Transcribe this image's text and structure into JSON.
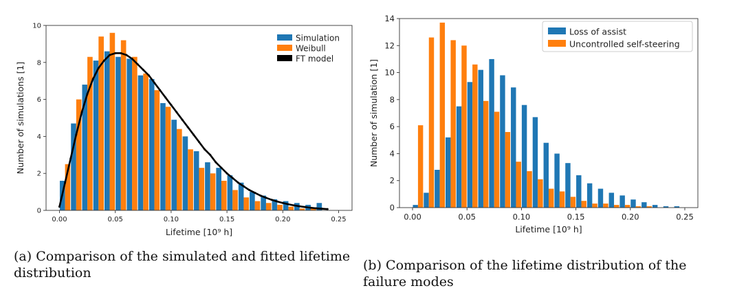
{
  "captions": {
    "a": "(a) Comparison of the simulated and fitted lifetime distribution",
    "b": "(b) Comparison of the lifetime distribution of the failure modes"
  },
  "chart_data": [
    {
      "type": "bar",
      "xlabel": "Lifetime [10⁹ h]",
      "ylabel": "Number of simulations [1]",
      "xlim": [
        -0.012,
        0.262
      ],
      "ylim": [
        0,
        10
      ],
      "xticks": [
        "0.00",
        "0.05",
        "0.10",
        "0.15",
        "0.20",
        "0.25"
      ],
      "xtick_values": [
        0,
        0.05,
        0.1,
        0.15,
        0.2,
        0.25
      ],
      "yticks": [
        "0",
        "2",
        "4",
        "6",
        "8",
        "10"
      ],
      "ytick_values": [
        0,
        2,
        4,
        6,
        8,
        10
      ],
      "grid": false,
      "legend_position": "top-right",
      "bin_width": 0.01,
      "x": [
        0.005,
        0.015,
        0.025,
        0.035,
        0.045,
        0.055,
        0.065,
        0.075,
        0.085,
        0.095,
        0.105,
        0.115,
        0.125,
        0.135,
        0.145,
        0.155,
        0.165,
        0.175,
        0.185,
        0.195,
        0.205,
        0.215,
        0.225,
        0.235,
        0.245
      ],
      "series": [
        {
          "name": "Simulation",
          "color": "#1f77b4",
          "values": [
            1.6,
            4.7,
            6.8,
            8.1,
            8.6,
            8.3,
            8.2,
            7.3,
            7.1,
            5.8,
            4.9,
            4.0,
            3.2,
            2.6,
            2.3,
            1.9,
            1.5,
            1.0,
            0.8,
            0.6,
            0.5,
            0.4,
            0.3,
            0.4,
            0.0
          ]
        },
        {
          "name": "Weibull",
          "color": "#ff7f0e",
          "values": [
            2.5,
            6.0,
            8.3,
            9.4,
            9.6,
            9.2,
            8.3,
            7.4,
            6.5,
            5.6,
            4.4,
            3.3,
            2.3,
            2.0,
            1.6,
            1.1,
            0.7,
            0.5,
            0.4,
            0.3,
            0.2,
            0.1,
            0.1,
            0.0,
            0.0
          ]
        },
        {
          "name": "FT model",
          "color": "#000000",
          "type": "line",
          "x": [
            0.0,
            0.005,
            0.01,
            0.015,
            0.02,
            0.025,
            0.03,
            0.035,
            0.04,
            0.045,
            0.05,
            0.055,
            0.06,
            0.065,
            0.07,
            0.075,
            0.08,
            0.085,
            0.09,
            0.095,
            0.1,
            0.105,
            0.11,
            0.115,
            0.12,
            0.125,
            0.13,
            0.135,
            0.14,
            0.145,
            0.15,
            0.155,
            0.16,
            0.165,
            0.17,
            0.175,
            0.18,
            0.185,
            0.19,
            0.195,
            0.2,
            0.205,
            0.21,
            0.215,
            0.22,
            0.225,
            0.23,
            0.235,
            0.24
          ],
          "values": [
            0.2,
            1.5,
            2.8,
            4.1,
            5.3,
            6.3,
            7.1,
            7.7,
            8.1,
            8.4,
            8.5,
            8.5,
            8.4,
            8.2,
            7.9,
            7.6,
            7.3,
            6.9,
            6.5,
            6.1,
            5.7,
            5.3,
            4.9,
            4.5,
            4.1,
            3.7,
            3.3,
            3.0,
            2.6,
            2.3,
            2.0,
            1.75,
            1.5,
            1.3,
            1.1,
            0.95,
            0.8,
            0.68,
            0.57,
            0.48,
            0.4,
            0.33,
            0.27,
            0.22,
            0.18,
            0.14,
            0.11,
            0.09,
            0.07
          ]
        }
      ]
    },
    {
      "type": "bar",
      "xlabel": "Lifetime [10⁹ h]",
      "ylabel": "Number of simulation [1]",
      "xlim": [
        -0.012,
        0.262
      ],
      "ylim": [
        0,
        14
      ],
      "xticks": [
        "0.00",
        "0.05",
        "0.10",
        "0.15",
        "0.20",
        "0.25"
      ],
      "xtick_values": [
        0,
        0.05,
        0.1,
        0.15,
        0.2,
        0.25
      ],
      "yticks": [
        "0",
        "2",
        "4",
        "6",
        "8",
        "10",
        "12",
        "14"
      ],
      "ytick_values": [
        0,
        2,
        4,
        6,
        8,
        10,
        12,
        14
      ],
      "grid": false,
      "legend_position": "top-right",
      "bin_width": 0.01,
      "x": [
        0.005,
        0.015,
        0.025,
        0.035,
        0.045,
        0.055,
        0.065,
        0.075,
        0.085,
        0.095,
        0.105,
        0.115,
        0.125,
        0.135,
        0.145,
        0.155,
        0.165,
        0.175,
        0.185,
        0.195,
        0.205,
        0.215,
        0.225,
        0.235,
        0.245
      ],
      "series": [
        {
          "name": "Loss of assist",
          "color": "#1f77b4",
          "values": [
            0.2,
            1.1,
            2.8,
            5.2,
            7.5,
            9.3,
            10.2,
            11.0,
            9.8,
            8.9,
            7.6,
            6.7,
            4.8,
            4.0,
            3.3,
            2.4,
            1.8,
            1.4,
            1.1,
            0.9,
            0.6,
            0.4,
            0.2,
            0.1,
            0.1
          ]
        },
        {
          "name": "Uncontrolled self-steering",
          "color": "#ff7f0e",
          "values": [
            6.1,
            12.6,
            13.7,
            12.4,
            12.0,
            10.6,
            7.9,
            7.1,
            5.6,
            3.4,
            2.7,
            2.1,
            1.4,
            1.2,
            0.8,
            0.5,
            0.3,
            0.3,
            0.2,
            0.2,
            0.1,
            0.1,
            0.0,
            0.0,
            0.0
          ]
        }
      ]
    }
  ]
}
